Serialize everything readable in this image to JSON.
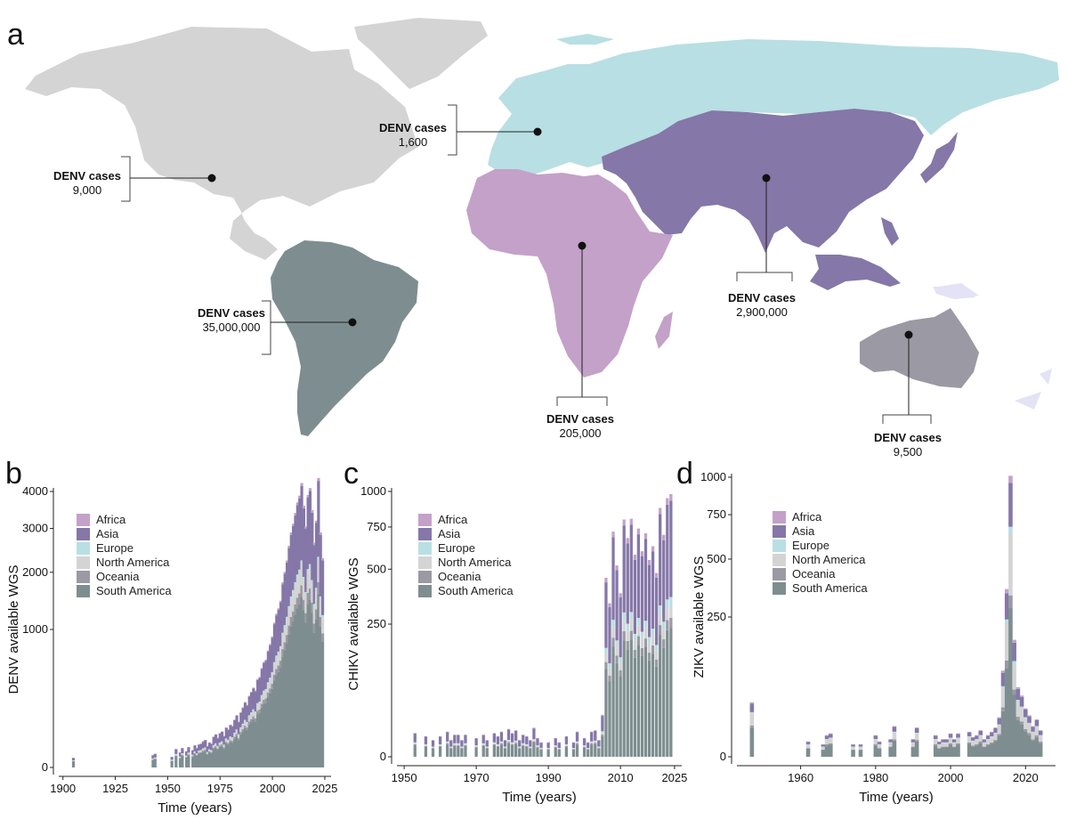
{
  "panel_labels": {
    "a": "a",
    "b": "b",
    "c": "c",
    "d": "d"
  },
  "colors": {
    "Africa": "#c4a1c8",
    "Asia": "#8577a8",
    "Europe": "#b8dfe3",
    "North America": "#d4d4d4",
    "Oceania": "#9b99a3",
    "South America": "#7e8e90",
    "Oceania_islands": "#e3e3f5"
  },
  "map": {
    "regions": [
      {
        "key": "north_america",
        "name": "North America",
        "title": "DENV cases",
        "value": "9,000"
      },
      {
        "key": "europe",
        "name": "Europe",
        "title": "DENV cases",
        "value": "1,600"
      },
      {
        "key": "south_america",
        "name": "South America",
        "title": "DENV cases",
        "value": "35,000,000"
      },
      {
        "key": "africa",
        "name": "Africa",
        "title": "DENV cases",
        "value": "205,000"
      },
      {
        "key": "asia",
        "name": "Asia",
        "title": "DENV cases",
        "value": "2,900,000"
      },
      {
        "key": "oceania",
        "name": "Oceania",
        "title": "DENV cases",
        "value": "9,500"
      }
    ]
  },
  "chart_data": [
    {
      "panel": "b",
      "type": "bar",
      "stacked": true,
      "ylabel": "DENV available WGS",
      "xlabel": "Time (years)",
      "xlim": [
        1898,
        2028
      ],
      "xticks": [
        1900,
        1925,
        1950,
        1975,
        2000,
        2025
      ],
      "yticks": [
        0,
        1000,
        2000,
        3000,
        4000
      ],
      "y_scale": "sqrt",
      "legend": [
        "Africa",
        "Asia",
        "Europe",
        "North America",
        "Oceania",
        "South America"
      ],
      "years": [
        1905,
        1943,
        1944,
        1952,
        1954,
        1956,
        1957,
        1959,
        1960,
        1962,
        1963,
        1964,
        1965,
        1966,
        1967,
        1968,
        1969,
        1970,
        1971,
        1972,
        1973,
        1974,
        1975,
        1976,
        1977,
        1978,
        1979,
        1980,
        1981,
        1982,
        1983,
        1984,
        1985,
        1986,
        1987,
        1988,
        1989,
        1990,
        1991,
        1992,
        1993,
        1994,
        1995,
        1996,
        1997,
        1998,
        1999,
        2000,
        2001,
        2002,
        2003,
        2004,
        2005,
        2006,
        2007,
        2008,
        2009,
        2010,
        2011,
        2012,
        2013,
        2014,
        2015,
        2016,
        2017,
        2018,
        2019,
        2020,
        2021,
        2022,
        2023,
        2024
      ],
      "totals": [
        5,
        8,
        10,
        6,
        18,
        12,
        20,
        14,
        22,
        16,
        26,
        20,
        28,
        30,
        36,
        40,
        24,
        33,
        30,
        50,
        58,
        46,
        62,
        68,
        52,
        84,
        76,
        96,
        90,
        120,
        144,
        110,
        160,
        190,
        225,
        205,
        270,
        300,
        335,
        310,
        410,
        430,
        520,
        585,
        610,
        720,
        800,
        900,
        1100,
        1240,
        1330,
        1460,
        1800,
        2010,
        2250,
        2580,
        2900,
        3120,
        3400,
        3690,
        3880,
        4250,
        3600,
        3050,
        3900,
        4100,
        3480,
        2650,
        3200,
        4400,
        2900,
        2300
      ],
      "shares": {
        "Africa": 0.02,
        "Asia": 0.45,
        "Europe": 0.02,
        "North America": 0.1,
        "Oceania": 0.05,
        "South America": 0.36
      }
    },
    {
      "panel": "c",
      "type": "bar",
      "stacked": true,
      "ylabel": "CHIKV available WGS",
      "xlabel": "Time (years)",
      "xlim": [
        1948,
        2027
      ],
      "xticks": [
        1950,
        1970,
        1990,
        2010,
        2025
      ],
      "yticks": [
        0,
        250,
        500,
        750,
        1000
      ],
      "y_scale": "sqrt",
      "legend": [
        "Africa",
        "Asia",
        "Europe",
        "North America",
        "Oceania",
        "South America"
      ],
      "years": [
        1953,
        1956,
        1958,
        1960,
        1962,
        1963,
        1964,
        1965,
        1966,
        1967,
        1970,
        1972,
        1973,
        1975,
        1976,
        1977,
        1978,
        1979,
        1980,
        1981,
        1982,
        1983,
        1984,
        1985,
        1986,
        1987,
        1988,
        1990,
        1992,
        1993,
        1995,
        1997,
        1998,
        2000,
        2001,
        2002,
        2003,
        2004,
        2005,
        2006,
        2007,
        2008,
        2009,
        2010,
        2011,
        2012,
        2013,
        2014,
        2015,
        2016,
        2017,
        2018,
        2019,
        2020,
        2021,
        2022,
        2023,
        2024
      ],
      "totals": [
        8,
        6,
        4,
        6,
        9,
        4,
        7,
        7,
        4,
        7,
        5,
        7,
        4,
        8,
        6,
        9,
        4,
        11,
        8,
        10,
        4,
        7,
        6,
        4,
        12,
        5,
        3,
        3,
        5,
        3,
        6,
        3,
        9,
        5,
        3,
        9,
        10,
        4,
        25,
        455,
        335,
        720,
        520,
        380,
        800,
        680,
        805,
        580,
        740,
        600,
        710,
        550,
        630,
        480,
        880,
        700,
        950,
        980
      ],
      "shares": {
        "Africa": 0.05,
        "Asia": 0.58,
        "Europe": 0.04,
        "North America": 0.05,
        "Oceania": 0.04,
        "South America": 0.24
      }
    },
    {
      "panel": "d",
      "type": "bar",
      "stacked": true,
      "ylabel": "ZIKV available WGS",
      "xlabel": "Time (years)",
      "xlim": [
        1943,
        2028
      ],
      "xticks": [
        1960,
        1980,
        2000,
        2020
      ],
      "yticks": [
        0,
        250,
        500,
        750,
        1000
      ],
      "y_scale": "sqrt",
      "legend": [
        "Africa",
        "Asia",
        "Europe",
        "North America",
        "Oceania",
        "South America"
      ],
      "years": [
        1947,
        1962,
        1966,
        1967,
        1968,
        1974,
        1976,
        1980,
        1981,
        1984,
        1985,
        1990,
        1991,
        1996,
        1997,
        1998,
        1999,
        2000,
        2001,
        2002,
        2005,
        2006,
        2007,
        2008,
        2009,
        2010,
        2011,
        2012,
        2013,
        2014,
        2015,
        2016,
        2017,
        2018,
        2019,
        2020,
        2021,
        2022,
        2023,
        2024
      ],
      "totals": [
        38,
        3,
        2,
        6,
        7,
        2,
        2,
        6,
        3,
        4,
        12,
        4,
        11,
        6,
        3,
        4,
        4,
        7,
        4,
        7,
        8,
        5,
        6,
        9,
        4,
        6,
        8,
        11,
        20,
        95,
        360,
        1010,
        175,
        62,
        48,
        30,
        22,
        12,
        18,
        9
      ],
      "shares": {
        "Africa": 0.05,
        "Asia": 0.28,
        "Europe": 0.04,
        "North America": 0.3,
        "Oceania": 0.05,
        "South America": 0.28
      }
    }
  ]
}
